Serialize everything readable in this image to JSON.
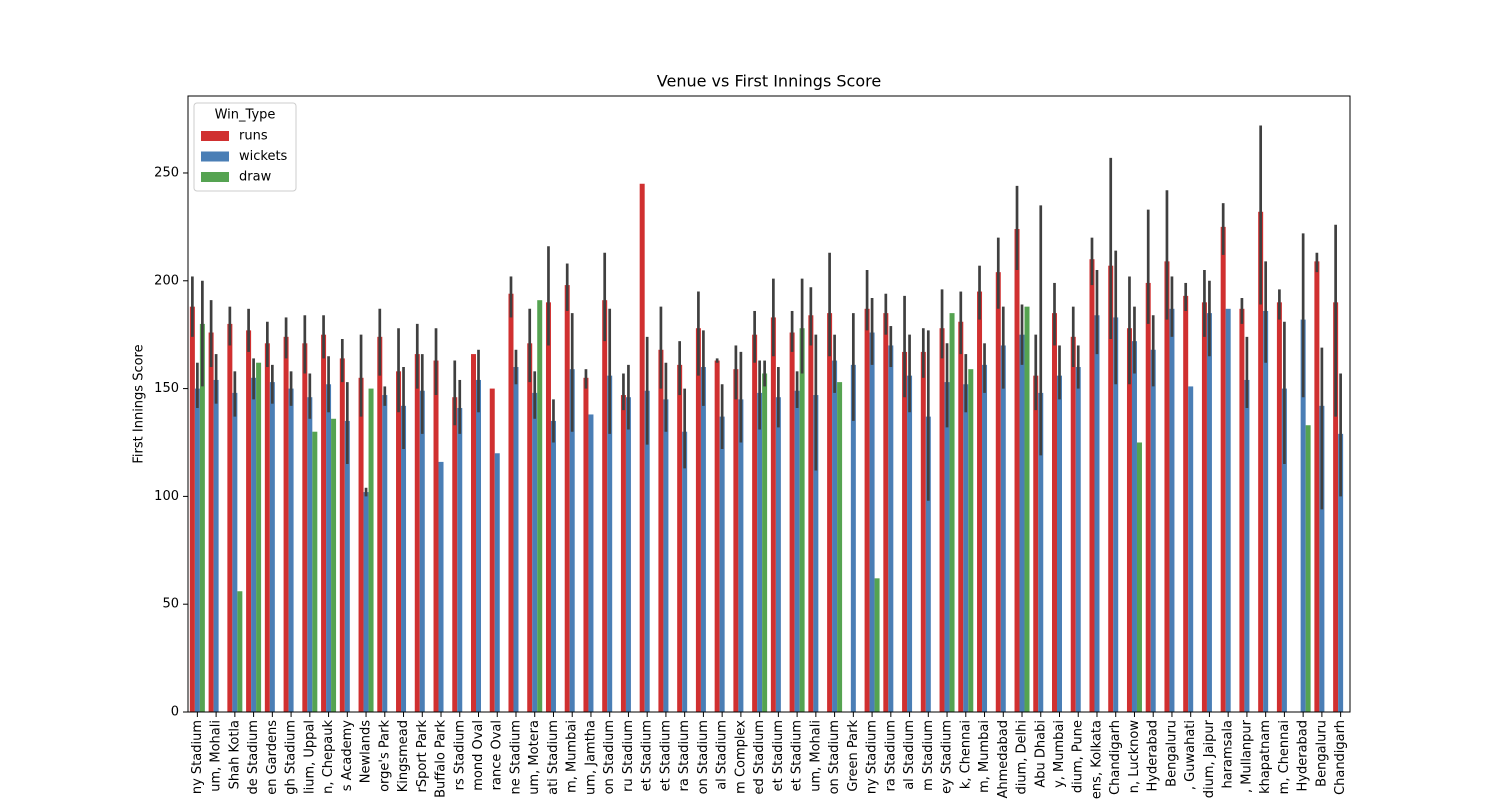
{
  "chart_data": {
    "type": "bar",
    "title": "Venue vs First Innings Score",
    "y_label": "First Innings Score",
    "legend_title": "Win_Type",
    "legend": "upper left",
    "categories": [
      "ny Stadium",
      "um, Mohali",
      "Shah Kotla",
      "de Stadium",
      "en Gardens",
      "gh Stadium",
      "lium, Uppal",
      "n, Chepauk",
      "s Academy",
      "Newlands",
      "orge's Park",
      "Kingsmead",
      "rSport Park",
      "Buffalo Park",
      "rs Stadium",
      "mond Oval",
      "rance Oval",
      "ne Stadium",
      "um, Motera",
      "ati Stadium",
      "m, Mumbai",
      "um, Jamtha",
      "on Stadium",
      "ru Stadium",
      "et Stadium",
      "et Stadium",
      "ra Stadium",
      "on Stadium",
      "al Stadium",
      "m Complex",
      "ed Stadium",
      "et Stadium",
      "et Stadium",
      "um, Mohali",
      "on Stadium",
      "Green Park",
      "ny Stadium",
      "ra Stadium",
      "al Stadium",
      "m Stadium",
      "ey Stadium",
      "k, Chennai",
      "m, Mumbai",
      "Ahmedabad",
      "dium, Delhi",
      "Abu Dhabi",
      "y, Mumbai",
      "dium, Pune",
      "ens, Kolkata",
      "Chandigarh",
      "n, Lucknow",
      "Hyderabad",
      "Bengaluru",
      ", Guwahati",
      "dium, Jaipur",
      "haramsala",
      ", Mullanpur",
      "khapatnam",
      "m, Chennai",
      "Hyderabad",
      "Bengaluru",
      "Chandigarh"
    ],
    "series": [
      {
        "name": "runs",
        "color": "#d03030",
        "values": [
          188,
          176,
          180,
          177,
          171,
          174,
          171,
          175,
          164,
          155,
          174,
          158,
          166,
          163,
          146,
          166,
          150,
          194,
          171,
          190,
          198,
          155,
          191,
          147,
          245,
          168,
          161,
          178,
          163,
          159,
          175,
          183,
          176,
          184,
          185,
          null,
          187,
          185,
          167,
          167,
          178,
          181,
          195,
          204,
          224,
          156,
          185,
          174,
          210,
          207,
          178,
          199,
          209,
          193,
          190,
          225,
          187,
          232,
          190,
          null,
          209,
          190
        ],
        "ci": [
          [
            174,
            202
          ],
          [
            160,
            191
          ],
          [
            170,
            188
          ],
          [
            167,
            187
          ],
          [
            160,
            181
          ],
          [
            164,
            183
          ],
          [
            157,
            184
          ],
          [
            164,
            184
          ],
          [
            153,
            173
          ],
          [
            137,
            175
          ],
          [
            156,
            187
          ],
          [
            139,
            178
          ],
          [
            150,
            180
          ],
          [
            147,
            178
          ],
          [
            133,
            163
          ],
          null,
          null,
          [
            183,
            202
          ],
          [
            153,
            187
          ],
          [
            170,
            216
          ],
          [
            186,
            208
          ],
          [
            150,
            159
          ],
          [
            172,
            213
          ],
          [
            140,
            157
          ],
          null,
          [
            150,
            188
          ],
          [
            147,
            172
          ],
          [
            156,
            195
          ],
          [
            162,
            164
          ],
          [
            145,
            170
          ],
          [
            162,
            186
          ],
          [
            165,
            201
          ],
          [
            167,
            186
          ],
          [
            170,
            197
          ],
          [
            165,
            213
          ],
          null,
          [
            177,
            205
          ],
          [
            175,
            194
          ],
          [
            146,
            193
          ],
          [
            155,
            178
          ],
          [
            164,
            196
          ],
          [
            166,
            195
          ],
          [
            182,
            207
          ],
          [
            187,
            220
          ],
          [
            205,
            244
          ],
          [
            140,
            175
          ],
          [
            170,
            199
          ],
          [
            160,
            188
          ],
          [
            198,
            220
          ],
          [
            173,
            257
          ],
          [
            152,
            202
          ],
          [
            180,
            233
          ],
          [
            182,
            242
          ],
          [
            186,
            199
          ],
          [
            174,
            205
          ],
          [
            212,
            236
          ],
          [
            180,
            192
          ],
          [
            189,
            272
          ],
          [
            182,
            196
          ],
          null,
          [
            204,
            213
          ],
          [
            137,
            226
          ]
        ]
      },
      {
        "name": "wickets",
        "color": "#4a7eb5",
        "values": [
          150,
          154,
          148,
          155,
          153,
          150,
          146,
          152,
          135,
          102,
          147,
          142,
          149,
          116,
          141,
          154,
          120,
          160,
          148,
          135,
          159,
          138,
          156,
          146,
          149,
          145,
          130,
          160,
          137,
          145,
          148,
          146,
          149,
          147,
          163,
          161,
          176,
          170,
          156,
          137,
          153,
          152,
          161,
          170,
          175,
          148,
          156,
          160,
          184,
          183,
          172,
          168,
          187,
          151,
          185,
          187,
          154,
          186,
          150,
          182,
          142,
          129
        ],
        "ci": [
          [
            141,
            162
          ],
          [
            143,
            166
          ],
          [
            137,
            158
          ],
          [
            145,
            164
          ],
          [
            143,
            161
          ],
          [
            142,
            158
          ],
          [
            136,
            157
          ],
          [
            139,
            165
          ],
          [
            115,
            153
          ],
          [
            100,
            104
          ],
          [
            142,
            151
          ],
          [
            122,
            160
          ],
          [
            129,
            166
          ],
          null,
          [
            129,
            154
          ],
          [
            139,
            168
          ],
          null,
          [
            152,
            168
          ],
          [
            136,
            158
          ],
          [
            125,
            145
          ],
          [
            130,
            185
          ],
          null,
          [
            129,
            187
          ],
          [
            131,
            161
          ],
          [
            124,
            174
          ],
          [
            130,
            162
          ],
          [
            113,
            150
          ],
          [
            142,
            177
          ],
          [
            122,
            152
          ],
          [
            125,
            167
          ],
          [
            131,
            163
          ],
          [
            132,
            160
          ],
          [
            141,
            158
          ],
          [
            112,
            175
          ],
          [
            148,
            175
          ],
          [
            135,
            185
          ],
          [
            161,
            192
          ],
          [
            160,
            179
          ],
          [
            139,
            175
          ],
          [
            98,
            177
          ],
          [
            132,
            171
          ],
          [
            139,
            166
          ],
          [
            148,
            171
          ],
          [
            150,
            188
          ],
          [
            161,
            189
          ],
          [
            119,
            235
          ],
          [
            145,
            170
          ],
          [
            150,
            170
          ],
          [
            166,
            205
          ],
          [
            152,
            214
          ],
          [
            157,
            188
          ],
          [
            151,
            184
          ],
          [
            174,
            202
          ],
          null,
          [
            165,
            200
          ],
          null,
          [
            141,
            174
          ],
          [
            162,
            209
          ],
          [
            115,
            181
          ],
          [
            146,
            222
          ],
          [
            94,
            169
          ],
          [
            100,
            157
          ]
        ]
      },
      {
        "name": "draw",
        "color": "#55a351",
        "values": [
          180,
          null,
          56,
          162,
          null,
          null,
          130,
          136,
          null,
          150,
          null,
          null,
          null,
          null,
          null,
          null,
          null,
          null,
          191,
          null,
          null,
          null,
          null,
          null,
          null,
          null,
          null,
          null,
          null,
          null,
          157,
          null,
          178,
          null,
          153,
          null,
          62,
          null,
          null,
          null,
          185,
          159,
          null,
          null,
          188,
          null,
          null,
          null,
          null,
          null,
          125,
          null,
          null,
          null,
          null,
          null,
          null,
          null,
          null,
          133,
          null,
          null
        ],
        "ci": [
          [
            151,
            200
          ],
          null,
          null,
          null,
          null,
          null,
          null,
          null,
          null,
          null,
          null,
          null,
          null,
          null,
          null,
          null,
          null,
          null,
          null,
          null,
          null,
          null,
          null,
          null,
          null,
          null,
          null,
          null,
          null,
          null,
          [
            151,
            163
          ],
          null,
          [
            157,
            201
          ],
          null,
          null,
          null,
          null,
          null,
          null,
          null,
          null,
          null,
          null,
          null,
          null,
          null,
          null,
          null,
          null,
          null,
          null,
          null,
          null,
          null,
          null,
          null,
          null,
          null,
          null,
          null,
          null,
          null
        ]
      }
    ],
    "ylim": [
      0,
      285.7
    ],
    "yticks": [
      0,
      50,
      100,
      150,
      200,
      250
    ],
    "grid": false
  }
}
